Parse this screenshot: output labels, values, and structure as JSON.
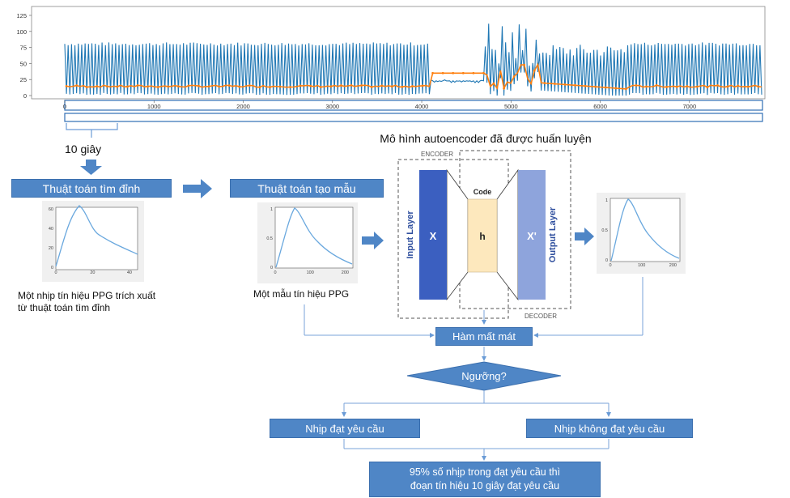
{
  "signal_chart": {
    "yticks": [
      "125",
      "100",
      "75",
      "50",
      "25",
      "0"
    ],
    "xticks": [
      "0",
      "1000",
      "2000",
      "3000",
      "4000",
      "5000",
      "6000",
      "7000"
    ],
    "colors": {
      "ppg": "#1f77b4",
      "peaks": "#ff7f0e"
    }
  },
  "window_label": "10 giây",
  "peak_algo": "Thuật toán tìm đỉnh",
  "template_algo": "Thuật toán tạo mẫu",
  "model_title": "Mô hình autoencoder đã được huấn luyện",
  "encoder": {
    "label": "ENCODER",
    "input_layer": "Input Layer",
    "input_symbol": "X",
    "code_label": "Code",
    "code_symbol": "h"
  },
  "decoder": {
    "label": "DECODER",
    "output_layer": "Output Layer",
    "output_symbol": "X'"
  },
  "mini_chart_1": {
    "yticks": [
      "60",
      "40",
      "20",
      "0"
    ],
    "xticks": [
      "0",
      "20",
      "40"
    ]
  },
  "mini_chart_2": {
    "yticks": [
      "1",
      "0.5",
      "0"
    ],
    "xticks": [
      "0",
      "100",
      "200"
    ]
  },
  "mini_chart_3": {
    "yticks": [
      "1",
      "0.5",
      "0"
    ],
    "xticks": [
      "0",
      "100",
      "200"
    ]
  },
  "caption_peak": "Một nhịp tín hiệu PPG trích xuất từ thuật toán tìm đỉnh",
  "caption_template": "Một mẫu tín hiệu PPG",
  "loss": "Hàm mất mát",
  "threshold": "Ngưỡng?",
  "beat_ok": "Nhịp đạt yêu cầu",
  "beat_not_ok": "Nhịp không đạt yêu cầu",
  "final_line1": "95% số nhịp trong đạt yêu cầu thì",
  "final_line2": "đoạn tín hiệu 10 giây đạt yêu cầu"
}
